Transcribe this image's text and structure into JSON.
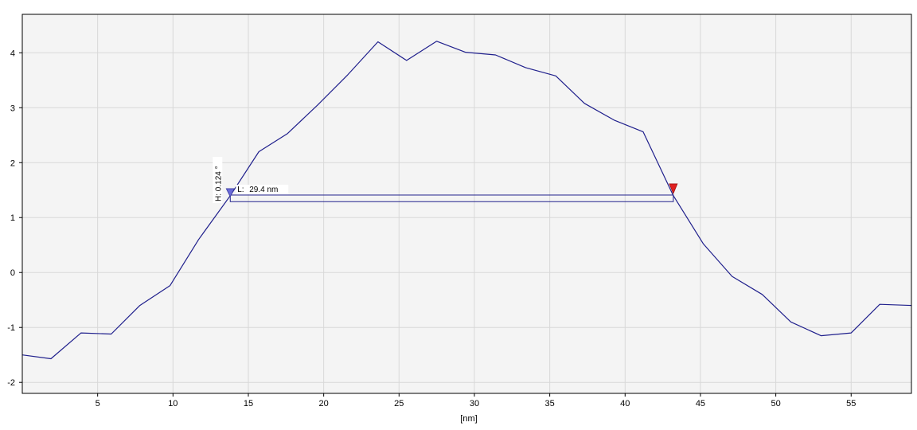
{
  "chart_data": {
    "type": "line",
    "xlabel": "[nm]",
    "ylabel": "",
    "xlim": [
      0,
      59
    ],
    "ylim": [
      -2.2,
      4.7
    ],
    "x_ticks": [
      5,
      10,
      15,
      20,
      25,
      30,
      35,
      40,
      45,
      50,
      55
    ],
    "y_ticks": [
      -2,
      -1,
      0,
      1,
      2,
      3,
      4
    ],
    "grid": true,
    "series": [
      {
        "color": "#1f1f8c",
        "points": [
          [
            0,
            -1.5
          ],
          [
            1.9,
            -1.57
          ],
          [
            3.9,
            -1.1
          ],
          [
            5.9,
            -1.12
          ],
          [
            7.8,
            -0.6
          ],
          [
            9.8,
            -0.24
          ],
          [
            11.7,
            0.6
          ],
          [
            13.8,
            1.4
          ],
          [
            15.7,
            2.2
          ],
          [
            17.6,
            2.53
          ],
          [
            19.6,
            3.05
          ],
          [
            21.6,
            3.6
          ],
          [
            23.6,
            4.2
          ],
          [
            25.5,
            3.86
          ],
          [
            27.5,
            4.21
          ],
          [
            29.4,
            4.01
          ],
          [
            31.4,
            3.96
          ],
          [
            33.4,
            3.73
          ],
          [
            35.4,
            3.58
          ],
          [
            37.3,
            3.08
          ],
          [
            39.3,
            2.77
          ],
          [
            41.2,
            2.56
          ],
          [
            43.2,
            1.4
          ],
          [
            45.2,
            0.52
          ],
          [
            47.1,
            -0.07
          ],
          [
            49.1,
            -0.4
          ],
          [
            51.0,
            -0.9
          ],
          [
            53.0,
            -1.15
          ],
          [
            55.0,
            -1.1
          ],
          [
            56.9,
            -0.58
          ],
          [
            59,
            -0.6
          ]
        ]
      }
    ],
    "measurement": {
      "length_label": "L:",
      "length_value": "29.4 nm",
      "height_label": "H: 0.124 °",
      "x_start": 13.8,
      "x_end": 43.2,
      "y_low": 1.29,
      "y_high": 1.41,
      "start_marker_color": "#6a6ad8",
      "end_marker_color": "#e02020"
    },
    "colors": {
      "plot_background": "#f4f4f4",
      "grid": "#d8d8d8",
      "axis": "#000000"
    }
  }
}
